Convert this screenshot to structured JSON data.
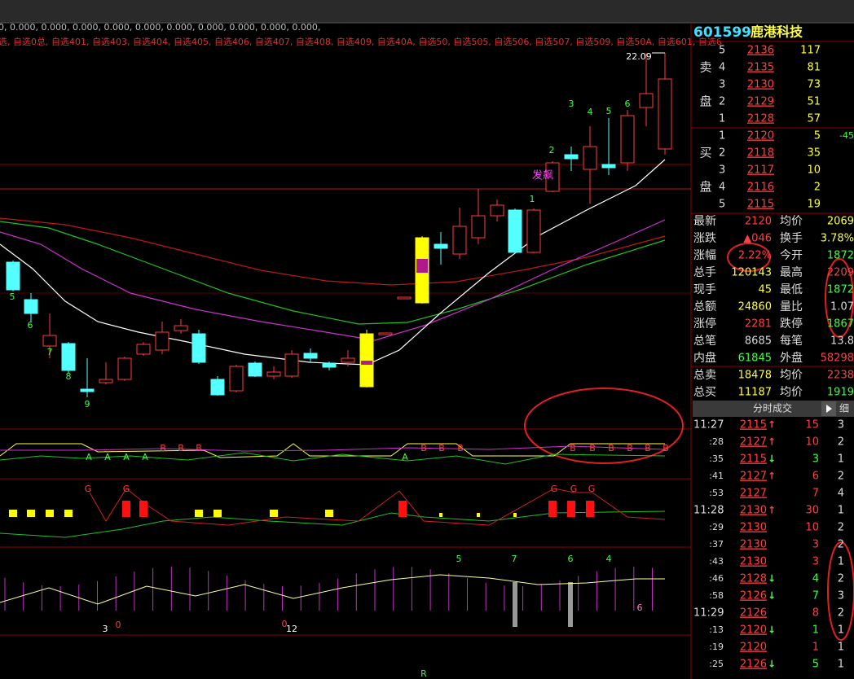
{
  "top_strip": "0, 0.000, 0.000, 0.000, 0.000, 0.000, 0.000, 0.000, 0.000, 0.000, 0.000,",
  "watchlists": "选, 自选0总, 自选401, 自选403, 自选404, 自选405, 自选406, 自选407, 自选408, 自选409, 自选40A, 自选50, 自选505, 自选506, 自选507, 自选509, 自选50A, 自选601, 自选6",
  "chart_labels": {
    "high_price": "22.09",
    "signal": "发飙",
    "down_counts": [
      "5",
      "6",
      "7",
      "8",
      "9"
    ],
    "up_counts": [
      "1",
      "2",
      "3",
      "4",
      "5",
      "6"
    ],
    "panel1_a": [
      "A",
      "A",
      "A",
      "A",
      "A"
    ],
    "panel1_b": [
      "B",
      "B",
      "B",
      "B",
      "B",
      "B",
      "B",
      "B",
      "B",
      "B",
      "B",
      "B"
    ],
    "panel2_g": [
      "G",
      "G",
      "G",
      "G",
      "G"
    ],
    "panel3_top": [
      "5",
      "7",
      "6",
      "4"
    ],
    "panel3_low": [
      "3",
      "0",
      "0",
      "12",
      "6"
    ],
    "bottom": "R"
  },
  "header": {
    "code": "601599",
    "name": "鹿港科技"
  },
  "ask": {
    "label": [
      "卖",
      "盘"
    ],
    "rows": [
      [
        "5",
        "2136",
        "117"
      ],
      [
        "4",
        "2135",
        "81"
      ],
      [
        "3",
        "2130",
        "73"
      ],
      [
        "2",
        "2129",
        "51"
      ],
      [
        "1",
        "2128",
        "57"
      ]
    ]
  },
  "bid": {
    "label": [
      "买",
      "盘"
    ],
    "rows": [
      [
        "1",
        "2120",
        "5"
      ],
      [
        "2",
        "2118",
        "35"
      ],
      [
        "3",
        "2117",
        "10"
      ],
      [
        "4",
        "2116",
        "2"
      ],
      [
        "5",
        "2115",
        "19"
      ]
    ],
    "change": "-45"
  },
  "stats": [
    [
      "最新",
      "2120",
      "均价",
      "2069"
    ],
    [
      "涨跌",
      "▲046",
      "换手",
      "3.78%"
    ],
    [
      "涨幅",
      "2.22%",
      "今开",
      "1872"
    ],
    [
      "总手",
      "120143",
      "最高",
      "2209"
    ],
    [
      "现手",
      "45",
      "最低",
      "1872"
    ],
    [
      "总额",
      "24860",
      "量比",
      "1.07"
    ],
    [
      "涨停",
      "2281",
      "跌停",
      "1867"
    ],
    [
      "总笔",
      "8685",
      "每笔",
      "13.8"
    ],
    [
      "内盘",
      "61845",
      "外盘",
      "58298"
    ],
    [
      "总卖",
      "18478",
      "均价",
      "2238"
    ],
    [
      "总买",
      "11187",
      "均价",
      "1919"
    ]
  ],
  "tabs": {
    "title": "分时成交",
    "detail": "细"
  },
  "ticks": [
    [
      "11:27",
      "2115",
      "↑",
      "15",
      "3"
    ],
    [
      ":28",
      "2127",
      "↑",
      "10",
      "2"
    ],
    [
      ":35",
      "2115",
      "↓",
      "3",
      "1"
    ],
    [
      ":41",
      "2127",
      "↑",
      "6",
      "2"
    ],
    [
      ":53",
      "2127",
      "",
      "7",
      "4"
    ],
    [
      "11:28",
      "2130",
      "↑",
      "30",
      "1"
    ],
    [
      ":29",
      "2130",
      "",
      "10",
      "2"
    ],
    [
      ":37",
      "2130",
      "",
      "3",
      "2"
    ],
    [
      ":43",
      "2130",
      "",
      "3",
      "1"
    ],
    [
      ":46",
      "2128",
      "↓",
      "4",
      "2"
    ],
    [
      ":58",
      "2126",
      "↓",
      "7",
      "3"
    ],
    [
      "11:29",
      "2126",
      "",
      "8",
      "2"
    ],
    [
      ":13",
      "2120",
      "↓",
      "1",
      "1"
    ],
    [
      ":19",
      "2120",
      "",
      "1",
      "1"
    ],
    [
      ":25",
      "2126",
      "↓",
      "5",
      "1"
    ]
  ]
}
